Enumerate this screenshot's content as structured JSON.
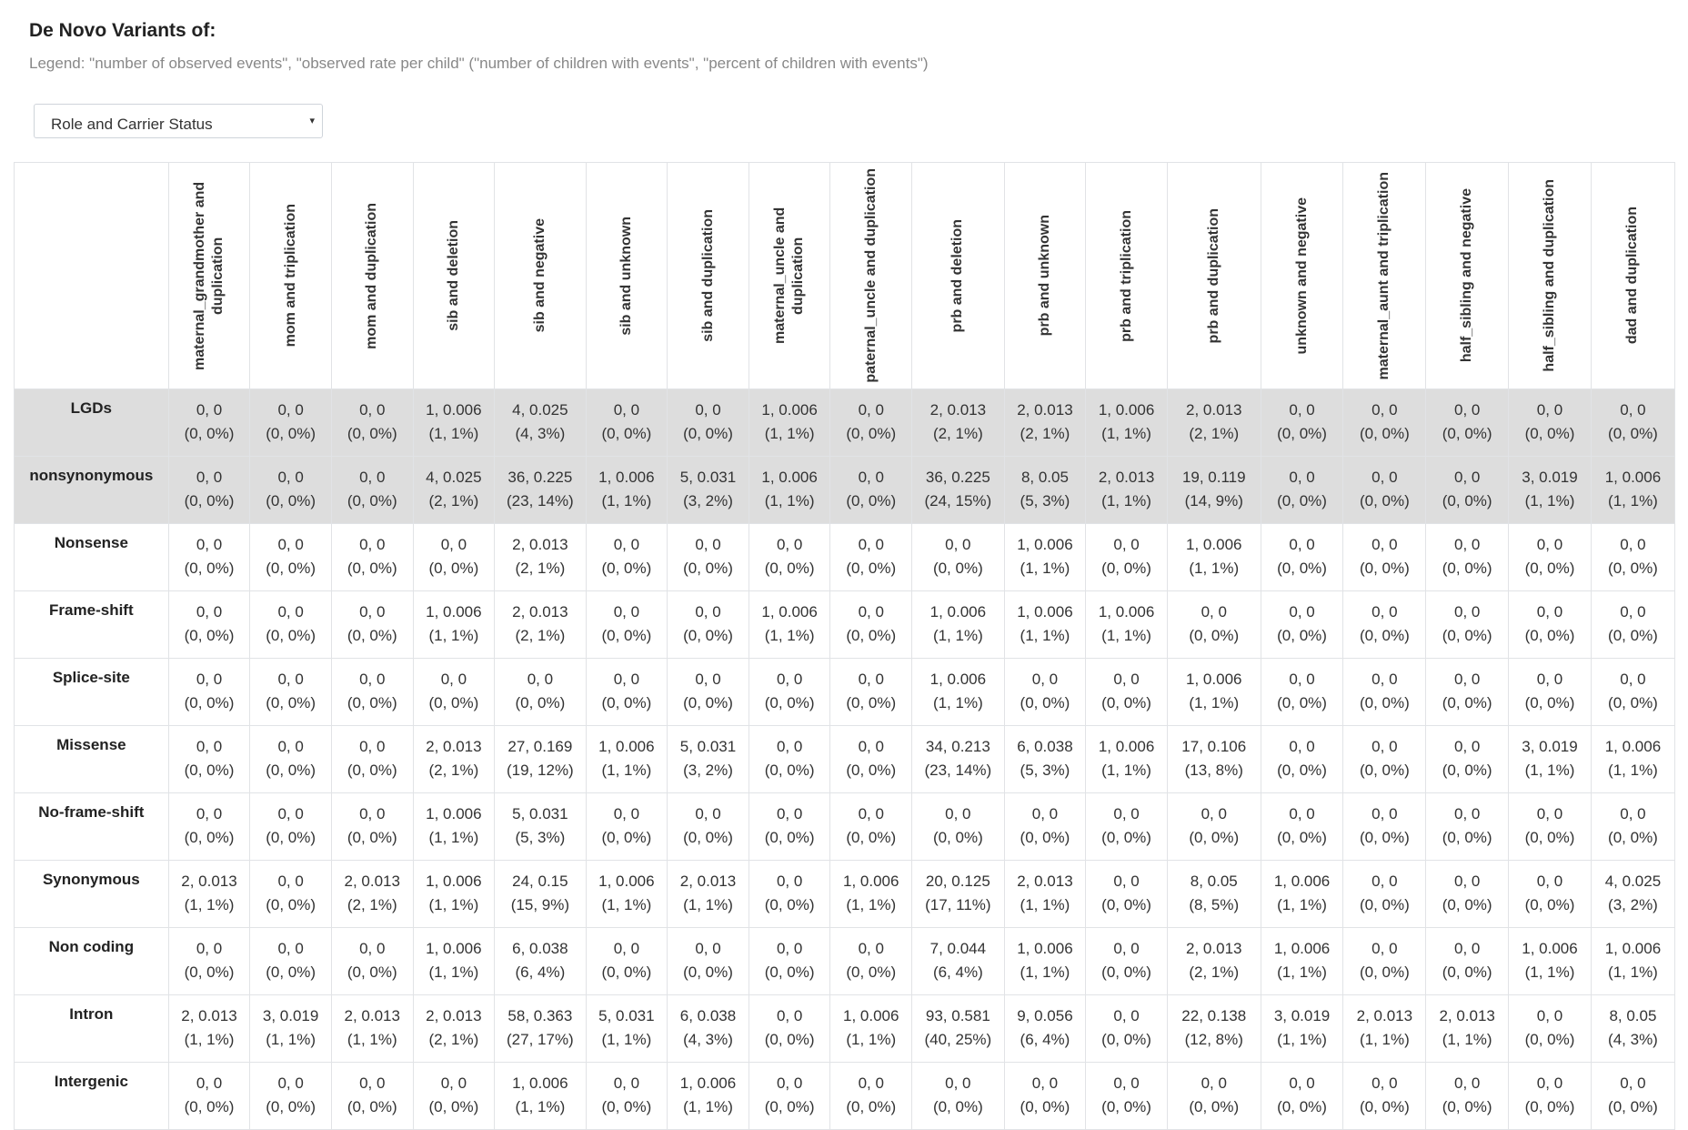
{
  "header": {
    "title": "De Novo Variants of:",
    "legend": "Legend: \"number of observed events\", \"observed rate per child\" (\"number of children with events\", \"percent of children with events\")"
  },
  "selector": {
    "value": "Role and Carrier Status",
    "arrow": "▾"
  },
  "table": {
    "columns": [
      "maternal_grandmother and duplication",
      "mom and triplication",
      "mom and duplication",
      "sib and deletion",
      "sib and negative",
      "sib and unknown",
      "sib and duplication",
      "maternal_uncle and duplication",
      "paternal_uncle and duplication",
      "prb and deletion",
      "prb and unknown",
      "prb and triplication",
      "prb and duplication",
      "unknown and negative",
      "maternal_aunt and triplication",
      "half_sibling and negative",
      "half_sibling and duplication",
      "dad and duplication"
    ],
    "rows": [
      {
        "label": "LGDs",
        "highlight": true,
        "cells": [
          [
            "0, 0",
            "(0, 0%)"
          ],
          [
            "0, 0",
            "(0, 0%)"
          ],
          [
            "0, 0",
            "(0, 0%)"
          ],
          [
            "1, 0.006",
            "(1, 1%)"
          ],
          [
            "4, 0.025",
            "(4, 3%)"
          ],
          [
            "0, 0",
            "(0, 0%)"
          ],
          [
            "0, 0",
            "(0, 0%)"
          ],
          [
            "1, 0.006",
            "(1, 1%)"
          ],
          [
            "0, 0",
            "(0, 0%)"
          ],
          [
            "2, 0.013",
            "(2, 1%)"
          ],
          [
            "2, 0.013",
            "(2, 1%)"
          ],
          [
            "1, 0.006",
            "(1, 1%)"
          ],
          [
            "2, 0.013",
            "(2, 1%)"
          ],
          [
            "0, 0",
            "(0, 0%)"
          ],
          [
            "0, 0",
            "(0, 0%)"
          ],
          [
            "0, 0",
            "(0, 0%)"
          ],
          [
            "0, 0",
            "(0, 0%)"
          ],
          [
            "0, 0",
            "(0, 0%)"
          ]
        ]
      },
      {
        "label": "nonsynonymous",
        "highlight": true,
        "cells": [
          [
            "0, 0",
            "(0, 0%)"
          ],
          [
            "0, 0",
            "(0, 0%)"
          ],
          [
            "0, 0",
            "(0, 0%)"
          ],
          [
            "4, 0.025",
            "(2, 1%)"
          ],
          [
            "36, 0.225",
            "(23, 14%)"
          ],
          [
            "1, 0.006",
            "(1, 1%)"
          ],
          [
            "5, 0.031",
            "(3, 2%)"
          ],
          [
            "1, 0.006",
            "(1, 1%)"
          ],
          [
            "0, 0",
            "(0, 0%)"
          ],
          [
            "36, 0.225",
            "(24, 15%)"
          ],
          [
            "8, 0.05",
            "(5, 3%)"
          ],
          [
            "2, 0.013",
            "(1, 1%)"
          ],
          [
            "19, 0.119",
            "(14, 9%)"
          ],
          [
            "0, 0",
            "(0, 0%)"
          ],
          [
            "0, 0",
            "(0, 0%)"
          ],
          [
            "0, 0",
            "(0, 0%)"
          ],
          [
            "3, 0.019",
            "(1, 1%)"
          ],
          [
            "1, 0.006",
            "(1, 1%)"
          ]
        ]
      },
      {
        "label": "Nonsense",
        "highlight": false,
        "cells": [
          [
            "0, 0",
            "(0, 0%)"
          ],
          [
            "0, 0",
            "(0, 0%)"
          ],
          [
            "0, 0",
            "(0, 0%)"
          ],
          [
            "0, 0",
            "(0, 0%)"
          ],
          [
            "2, 0.013",
            "(2, 1%)"
          ],
          [
            "0, 0",
            "(0, 0%)"
          ],
          [
            "0, 0",
            "(0, 0%)"
          ],
          [
            "0, 0",
            "(0, 0%)"
          ],
          [
            "0, 0",
            "(0, 0%)"
          ],
          [
            "0, 0",
            "(0, 0%)"
          ],
          [
            "1, 0.006",
            "(1, 1%)"
          ],
          [
            "0, 0",
            "(0, 0%)"
          ],
          [
            "1, 0.006",
            "(1, 1%)"
          ],
          [
            "0, 0",
            "(0, 0%)"
          ],
          [
            "0, 0",
            "(0, 0%)"
          ],
          [
            "0, 0",
            "(0, 0%)"
          ],
          [
            "0, 0",
            "(0, 0%)"
          ],
          [
            "0, 0",
            "(0, 0%)"
          ]
        ]
      },
      {
        "label": "Frame-shift",
        "highlight": false,
        "cells": [
          [
            "0, 0",
            "(0, 0%)"
          ],
          [
            "0, 0",
            "(0, 0%)"
          ],
          [
            "0, 0",
            "(0, 0%)"
          ],
          [
            "1, 0.006",
            "(1, 1%)"
          ],
          [
            "2, 0.013",
            "(2, 1%)"
          ],
          [
            "0, 0",
            "(0, 0%)"
          ],
          [
            "0, 0",
            "(0, 0%)"
          ],
          [
            "1, 0.006",
            "(1, 1%)"
          ],
          [
            "0, 0",
            "(0, 0%)"
          ],
          [
            "1, 0.006",
            "(1, 1%)"
          ],
          [
            "1, 0.006",
            "(1, 1%)"
          ],
          [
            "1, 0.006",
            "(1, 1%)"
          ],
          [
            "0, 0",
            "(0, 0%)"
          ],
          [
            "0, 0",
            "(0, 0%)"
          ],
          [
            "0, 0",
            "(0, 0%)"
          ],
          [
            "0, 0",
            "(0, 0%)"
          ],
          [
            "0, 0",
            "(0, 0%)"
          ],
          [
            "0, 0",
            "(0, 0%)"
          ]
        ]
      },
      {
        "label": "Splice-site",
        "highlight": false,
        "cells": [
          [
            "0, 0",
            "(0, 0%)"
          ],
          [
            "0, 0",
            "(0, 0%)"
          ],
          [
            "0, 0",
            "(0, 0%)"
          ],
          [
            "0, 0",
            "(0, 0%)"
          ],
          [
            "0, 0",
            "(0, 0%)"
          ],
          [
            "0, 0",
            "(0, 0%)"
          ],
          [
            "0, 0",
            "(0, 0%)"
          ],
          [
            "0, 0",
            "(0, 0%)"
          ],
          [
            "0, 0",
            "(0, 0%)"
          ],
          [
            "1, 0.006",
            "(1, 1%)"
          ],
          [
            "0, 0",
            "(0, 0%)"
          ],
          [
            "0, 0",
            "(0, 0%)"
          ],
          [
            "1, 0.006",
            "(1, 1%)"
          ],
          [
            "0, 0",
            "(0, 0%)"
          ],
          [
            "0, 0",
            "(0, 0%)"
          ],
          [
            "0, 0",
            "(0, 0%)"
          ],
          [
            "0, 0",
            "(0, 0%)"
          ],
          [
            "0, 0",
            "(0, 0%)"
          ]
        ]
      },
      {
        "label": "Missense",
        "highlight": false,
        "cells": [
          [
            "0, 0",
            "(0, 0%)"
          ],
          [
            "0, 0",
            "(0, 0%)"
          ],
          [
            "0, 0",
            "(0, 0%)"
          ],
          [
            "2, 0.013",
            "(2, 1%)"
          ],
          [
            "27, 0.169",
            "(19, 12%)"
          ],
          [
            "1, 0.006",
            "(1, 1%)"
          ],
          [
            "5, 0.031",
            "(3, 2%)"
          ],
          [
            "0, 0",
            "(0, 0%)"
          ],
          [
            "0, 0",
            "(0, 0%)"
          ],
          [
            "34, 0.213",
            "(23, 14%)"
          ],
          [
            "6, 0.038",
            "(5, 3%)"
          ],
          [
            "1, 0.006",
            "(1, 1%)"
          ],
          [
            "17, 0.106",
            "(13, 8%)"
          ],
          [
            "0, 0",
            "(0, 0%)"
          ],
          [
            "0, 0",
            "(0, 0%)"
          ],
          [
            "0, 0",
            "(0, 0%)"
          ],
          [
            "3, 0.019",
            "(1, 1%)"
          ],
          [
            "1, 0.006",
            "(1, 1%)"
          ]
        ]
      },
      {
        "label": "No-frame-shift",
        "highlight": false,
        "cells": [
          [
            "0, 0",
            "(0, 0%)"
          ],
          [
            "0, 0",
            "(0, 0%)"
          ],
          [
            "0, 0",
            "(0, 0%)"
          ],
          [
            "1, 0.006",
            "(1, 1%)"
          ],
          [
            "5, 0.031",
            "(5, 3%)"
          ],
          [
            "0, 0",
            "(0, 0%)"
          ],
          [
            "0, 0",
            "(0, 0%)"
          ],
          [
            "0, 0",
            "(0, 0%)"
          ],
          [
            "0, 0",
            "(0, 0%)"
          ],
          [
            "0, 0",
            "(0, 0%)"
          ],
          [
            "0, 0",
            "(0, 0%)"
          ],
          [
            "0, 0",
            "(0, 0%)"
          ],
          [
            "0, 0",
            "(0, 0%)"
          ],
          [
            "0, 0",
            "(0, 0%)"
          ],
          [
            "0, 0",
            "(0, 0%)"
          ],
          [
            "0, 0",
            "(0, 0%)"
          ],
          [
            "0, 0",
            "(0, 0%)"
          ],
          [
            "0, 0",
            "(0, 0%)"
          ]
        ]
      },
      {
        "label": "Synonymous",
        "highlight": false,
        "cells": [
          [
            "2, 0.013",
            "(1, 1%)"
          ],
          [
            "0, 0",
            "(0, 0%)"
          ],
          [
            "2, 0.013",
            "(2, 1%)"
          ],
          [
            "1, 0.006",
            "(1, 1%)"
          ],
          [
            "24, 0.15",
            "(15, 9%)"
          ],
          [
            "1, 0.006",
            "(1, 1%)"
          ],
          [
            "2, 0.013",
            "(1, 1%)"
          ],
          [
            "0, 0",
            "(0, 0%)"
          ],
          [
            "1, 0.006",
            "(1, 1%)"
          ],
          [
            "20, 0.125",
            "(17, 11%)"
          ],
          [
            "2, 0.013",
            "(1, 1%)"
          ],
          [
            "0, 0",
            "(0, 0%)"
          ],
          [
            "8, 0.05",
            "(8, 5%)"
          ],
          [
            "1, 0.006",
            "(1, 1%)"
          ],
          [
            "0, 0",
            "(0, 0%)"
          ],
          [
            "0, 0",
            "(0, 0%)"
          ],
          [
            "0, 0",
            "(0, 0%)"
          ],
          [
            "4, 0.025",
            "(3, 2%)"
          ]
        ]
      },
      {
        "label": "Non coding",
        "highlight": false,
        "cells": [
          [
            "0, 0",
            "(0, 0%)"
          ],
          [
            "0, 0",
            "(0, 0%)"
          ],
          [
            "0, 0",
            "(0, 0%)"
          ],
          [
            "1, 0.006",
            "(1, 1%)"
          ],
          [
            "6, 0.038",
            "(6, 4%)"
          ],
          [
            "0, 0",
            "(0, 0%)"
          ],
          [
            "0, 0",
            "(0, 0%)"
          ],
          [
            "0, 0",
            "(0, 0%)"
          ],
          [
            "0, 0",
            "(0, 0%)"
          ],
          [
            "7, 0.044",
            "(6, 4%)"
          ],
          [
            "1, 0.006",
            "(1, 1%)"
          ],
          [
            "0, 0",
            "(0, 0%)"
          ],
          [
            "2, 0.013",
            "(2, 1%)"
          ],
          [
            "1, 0.006",
            "(1, 1%)"
          ],
          [
            "0, 0",
            "(0, 0%)"
          ],
          [
            "0, 0",
            "(0, 0%)"
          ],
          [
            "1, 0.006",
            "(1, 1%)"
          ],
          [
            "1, 0.006",
            "(1, 1%)"
          ]
        ]
      },
      {
        "label": "Intron",
        "highlight": false,
        "cells": [
          [
            "2, 0.013",
            "(1, 1%)"
          ],
          [
            "3, 0.019",
            "(1, 1%)"
          ],
          [
            "2, 0.013",
            "(1, 1%)"
          ],
          [
            "2, 0.013",
            "(2, 1%)"
          ],
          [
            "58, 0.363",
            "(27, 17%)"
          ],
          [
            "5, 0.031",
            "(1, 1%)"
          ],
          [
            "6, 0.038",
            "(4, 3%)"
          ],
          [
            "0, 0",
            "(0, 0%)"
          ],
          [
            "1, 0.006",
            "(1, 1%)"
          ],
          [
            "93, 0.581",
            "(40, 25%)"
          ],
          [
            "9, 0.056",
            "(6, 4%)"
          ],
          [
            "0, 0",
            "(0, 0%)"
          ],
          [
            "22, 0.138",
            "(12, 8%)"
          ],
          [
            "3, 0.019",
            "(1, 1%)"
          ],
          [
            "2, 0.013",
            "(1, 1%)"
          ],
          [
            "2, 0.013",
            "(1, 1%)"
          ],
          [
            "0, 0",
            "(0, 0%)"
          ],
          [
            "8, 0.05",
            "(4, 3%)"
          ]
        ]
      },
      {
        "label": "Intergenic",
        "highlight": false,
        "cells": [
          [
            "0, 0",
            "(0, 0%)"
          ],
          [
            "0, 0",
            "(0, 0%)"
          ],
          [
            "0, 0",
            "(0, 0%)"
          ],
          [
            "0, 0",
            "(0, 0%)"
          ],
          [
            "1, 0.006",
            "(1, 1%)"
          ],
          [
            "0, 0",
            "(0, 0%)"
          ],
          [
            "1, 0.006",
            "(1, 1%)"
          ],
          [
            "0, 0",
            "(0, 0%)"
          ],
          [
            "0, 0",
            "(0, 0%)"
          ],
          [
            "0, 0",
            "(0, 0%)"
          ],
          [
            "0, 0",
            "(0, 0%)"
          ],
          [
            "0, 0",
            "(0, 0%)"
          ],
          [
            "0, 0",
            "(0, 0%)"
          ],
          [
            "0, 0",
            "(0, 0%)"
          ],
          [
            "0, 0",
            "(0, 0%)"
          ],
          [
            "0, 0",
            "(0, 0%)"
          ],
          [
            "0, 0",
            "(0, 0%)"
          ],
          [
            "0, 0",
            "(0, 0%)"
          ]
        ]
      }
    ]
  }
}
